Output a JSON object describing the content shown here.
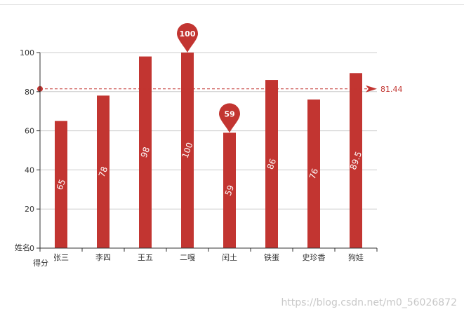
{
  "chart_data": {
    "type": "bar",
    "xlabel": "得分",
    "ylabel": "姓名",
    "categories": [
      "张三",
      "李四",
      "王五",
      "二嘎",
      "闰土",
      "铁蛋",
      "史珍香",
      "狗娃"
    ],
    "series": [
      {
        "values": [
          65,
          78,
          98,
          100,
          59,
          86,
          76,
          89.5
        ]
      }
    ],
    "ylim": [
      0,
      100
    ],
    "yticks": [
      0,
      20,
      40,
      60,
      80,
      100
    ],
    "grid": true,
    "data_labels": "inside-rotated",
    "mark_points": [
      {
        "category": "二嘎",
        "value": 100,
        "label": "100"
      },
      {
        "category": "闰土",
        "value": 59,
        "label": "59"
      }
    ],
    "mark_line": {
      "type": "average",
      "value": 81.44,
      "label": "81.44"
    },
    "bar_color": "#c23531",
    "grid_color": "#cccccc"
  },
  "watermark": "https://blog.csdn.net/m0_56026872"
}
